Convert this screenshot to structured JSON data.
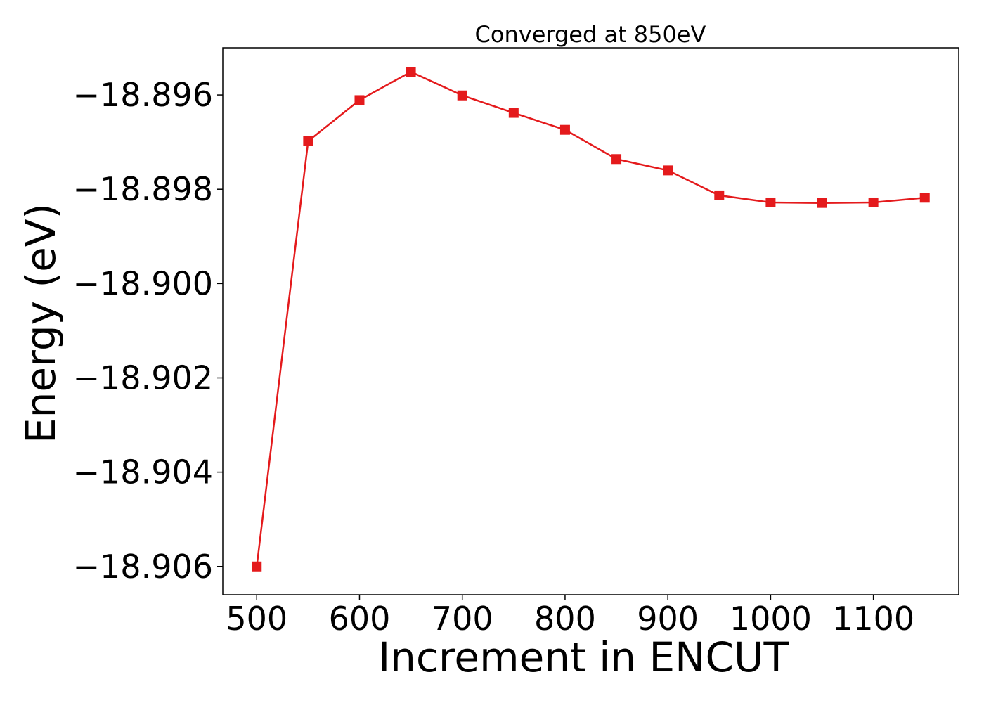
{
  "chart_data": {
    "type": "line",
    "title": "Converged at 850eV",
    "xlabel": "Increment in ENCUT",
    "ylabel": "Energy (eV)",
    "xlim": [
      467,
      1183
    ],
    "ylim": [
      -18.9066,
      -18.895
    ],
    "x_ticks": [
      500,
      600,
      700,
      800,
      900,
      1000,
      1100
    ],
    "x_tick_labels": [
      "500",
      "600",
      "700",
      "800",
      "900",
      "1000",
      "1100"
    ],
    "y_ticks": [
      -18.896,
      -18.898,
      -18.9,
      -18.902,
      -18.904,
      -18.906
    ],
    "y_tick_labels": [
      "−18.896",
      "−18.898",
      "−18.900",
      "−18.902",
      "−18.904",
      "−18.906"
    ],
    "grid": false,
    "series": [
      {
        "color": "#e41a1c",
        "marker": "square",
        "x": [
          500,
          550,
          600,
          650,
          700,
          750,
          800,
          850,
          900,
          950,
          1000,
          1050,
          1100,
          1150
        ],
        "y": [
          -18.906,
          -18.89698,
          -18.89611,
          -18.89551,
          -18.89601,
          -18.89638,
          -18.89674,
          -18.89736,
          -18.8976,
          -18.89813,
          -18.89828,
          -18.89829,
          -18.89828,
          -18.89818
        ]
      }
    ]
  }
}
